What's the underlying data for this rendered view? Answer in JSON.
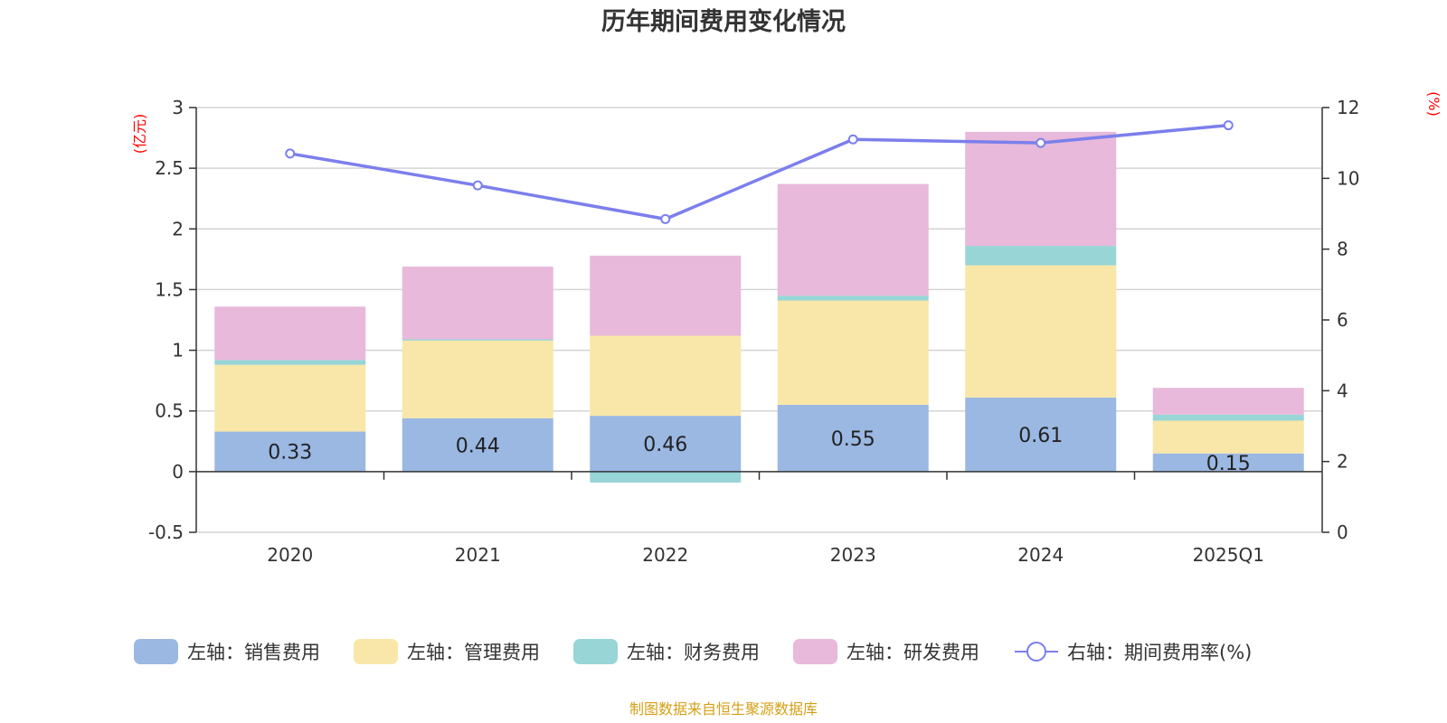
{
  "source": "制图数据来自恒生聚源数据库",
  "colors": {
    "sales": "#9BB8E3",
    "admin": "#F8E7A8",
    "finance": "#98D5D6",
    "rd": "#E8B9DA",
    "line": "#7B7FEC",
    "unit": "#ff0000",
    "source": "#d4a017"
  },
  "chart_data": {
    "type": "bar",
    "title": "历年期间费用变化情况",
    "categories": [
      "2020",
      "2021",
      "2022",
      "2023",
      "2024",
      "2025Q1"
    ],
    "y_left": {
      "unit": "(亿元)",
      "ylim": [
        -0.5,
        3
      ],
      "ticks": [
        "3",
        "2.5",
        "2",
        "1.5",
        "1",
        "0.5",
        "0",
        "-0.5"
      ]
    },
    "y_right": {
      "unit": "(%)",
      "ylim": [
        0,
        12
      ],
      "ticks": [
        "12",
        "10",
        "8",
        "6",
        "4",
        "2",
        "0"
      ]
    },
    "series": [
      {
        "name": "左轴：销售费用",
        "key": "sales",
        "stack": true,
        "values": [
          0.33,
          0.44,
          0.46,
          0.55,
          0.61,
          0.15
        ],
        "labels": [
          "0.33",
          "0.44",
          "0.46",
          "0.55",
          "0.61",
          "0.15"
        ]
      },
      {
        "name": "左轴：管理费用",
        "key": "admin",
        "stack": true,
        "values": [
          0.55,
          0.64,
          0.66,
          0.86,
          1.09,
          0.27
        ]
      },
      {
        "name": "左轴：财务费用",
        "key": "finance",
        "stack": true,
        "values": [
          0.04,
          0.01,
          -0.09,
          0.04,
          0.16,
          0.05
        ]
      },
      {
        "name": "左轴：研发费用",
        "key": "rd",
        "stack": true,
        "values": [
          0.44,
          0.6,
          0.66,
          0.92,
          0.94,
          0.22
        ]
      },
      {
        "name": "右轴：期间费用率(%)",
        "key": "line",
        "type": "line",
        "axis": "right",
        "values": [
          10.7,
          9.8,
          8.85,
          11.1,
          11.0,
          11.5
        ]
      }
    ],
    "grid": true,
    "legend_position": "bottom"
  }
}
